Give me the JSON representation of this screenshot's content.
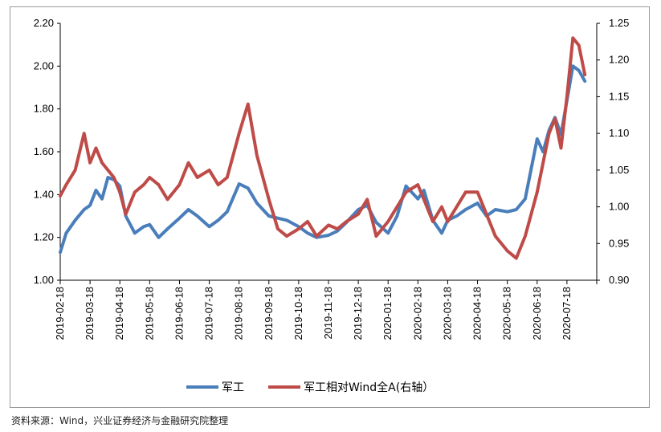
{
  "chart_data": {
    "type": "line",
    "title": "",
    "xlabel": "",
    "ylabel": "",
    "ylim": [
      1.0,
      2.2
    ],
    "y_ticks": [
      "1.00",
      "1.20",
      "1.40",
      "1.60",
      "1.80",
      "2.00",
      "2.20"
    ],
    "y2lim": [
      0.9,
      1.25
    ],
    "y2_ticks": [
      "0.90",
      "0.95",
      "1.00",
      "1.05",
      "1.10",
      "1.15",
      "1.20",
      "1.25"
    ],
    "categories": [
      "2019-02-18",
      "2019-03-18",
      "2019-04-18",
      "2019-05-18",
      "2019-06-18",
      "2019-07-18",
      "2019-08-18",
      "2019-09-18",
      "2019-10-18",
      "2019-11-18",
      "2019-12-18",
      "2020-01-18",
      "2020-02-18",
      "2020-03-18",
      "2020-04-18",
      "2020-05-18",
      "2020-06-18",
      "2020-07-18"
    ],
    "legend_position": "bottom",
    "series": [
      {
        "name": "军工",
        "axis": "left",
        "color": "#4a7ebb",
        "x": [
          0,
          0.2,
          0.5,
          0.8,
          1.0,
          1.2,
          1.4,
          1.6,
          1.8,
          2.0,
          2.2,
          2.5,
          2.8,
          3.0,
          3.3,
          3.6,
          4.0,
          4.3,
          4.6,
          5.0,
          5.3,
          5.6,
          6.0,
          6.3,
          6.6,
          7.0,
          7.3,
          7.6,
          8.0,
          8.3,
          8.6,
          9.0,
          9.3,
          9.6,
          10.0,
          10.3,
          10.6,
          11.0,
          11.3,
          11.6,
          12.0,
          12.2,
          12.5,
          12.8,
          13.0,
          13.3,
          13.6,
          14.0,
          14.3,
          14.6,
          15.0,
          15.3,
          15.6,
          16.0,
          16.2,
          16.4,
          16.6,
          16.8,
          17.0,
          17.2,
          17.4,
          17.6
        ],
        "values": [
          1.13,
          1.22,
          1.28,
          1.33,
          1.35,
          1.42,
          1.38,
          1.48,
          1.47,
          1.44,
          1.3,
          1.22,
          1.25,
          1.26,
          1.2,
          1.24,
          1.29,
          1.33,
          1.3,
          1.25,
          1.28,
          1.32,
          1.45,
          1.43,
          1.36,
          1.3,
          1.29,
          1.28,
          1.25,
          1.22,
          1.2,
          1.21,
          1.23,
          1.27,
          1.33,
          1.35,
          1.27,
          1.22,
          1.3,
          1.44,
          1.38,
          1.42,
          1.28,
          1.22,
          1.28,
          1.3,
          1.33,
          1.36,
          1.3,
          1.33,
          1.32,
          1.33,
          1.38,
          1.66,
          1.6,
          1.7,
          1.76,
          1.68,
          1.84,
          2.0,
          1.98,
          1.93
        ]
      },
      {
        "name": "军工相对Wind全A(右轴）",
        "axis": "right",
        "color": "#be4b48",
        "x": [
          0,
          0.2,
          0.5,
          0.8,
          1.0,
          1.2,
          1.4,
          1.6,
          1.8,
          2.0,
          2.2,
          2.5,
          2.8,
          3.0,
          3.3,
          3.6,
          4.0,
          4.3,
          4.6,
          5.0,
          5.3,
          5.6,
          6.0,
          6.3,
          6.6,
          7.0,
          7.3,
          7.6,
          8.0,
          8.3,
          8.6,
          9.0,
          9.3,
          9.6,
          10.0,
          10.3,
          10.6,
          11.0,
          11.3,
          11.6,
          12.0,
          12.2,
          12.5,
          12.8,
          13.0,
          13.3,
          13.6,
          14.0,
          14.3,
          14.6,
          15.0,
          15.3,
          15.6,
          16.0,
          16.2,
          16.4,
          16.6,
          16.8,
          17.0,
          17.2,
          17.4,
          17.6
        ],
        "values": [
          1.015,
          1.03,
          1.05,
          1.1,
          1.06,
          1.08,
          1.06,
          1.05,
          1.04,
          1.02,
          0.99,
          1.02,
          1.03,
          1.04,
          1.03,
          1.01,
          1.03,
          1.06,
          1.04,
          1.05,
          1.03,
          1.04,
          1.1,
          1.14,
          1.07,
          1.01,
          0.97,
          0.96,
          0.97,
          0.98,
          0.96,
          0.975,
          0.97,
          0.98,
          0.99,
          1.01,
          0.96,
          0.98,
          1.0,
          1.02,
          1.03,
          1.01,
          0.98,
          1.0,
          0.98,
          1.0,
          1.02,
          1.02,
          0.99,
          0.96,
          0.94,
          0.93,
          0.96,
          1.02,
          1.06,
          1.1,
          1.12,
          1.08,
          1.15,
          1.23,
          1.22,
          1.18
        ]
      }
    ]
  },
  "footer": {
    "source": "资料来源：Wind，兴业证券经济与金融研究院整理"
  }
}
